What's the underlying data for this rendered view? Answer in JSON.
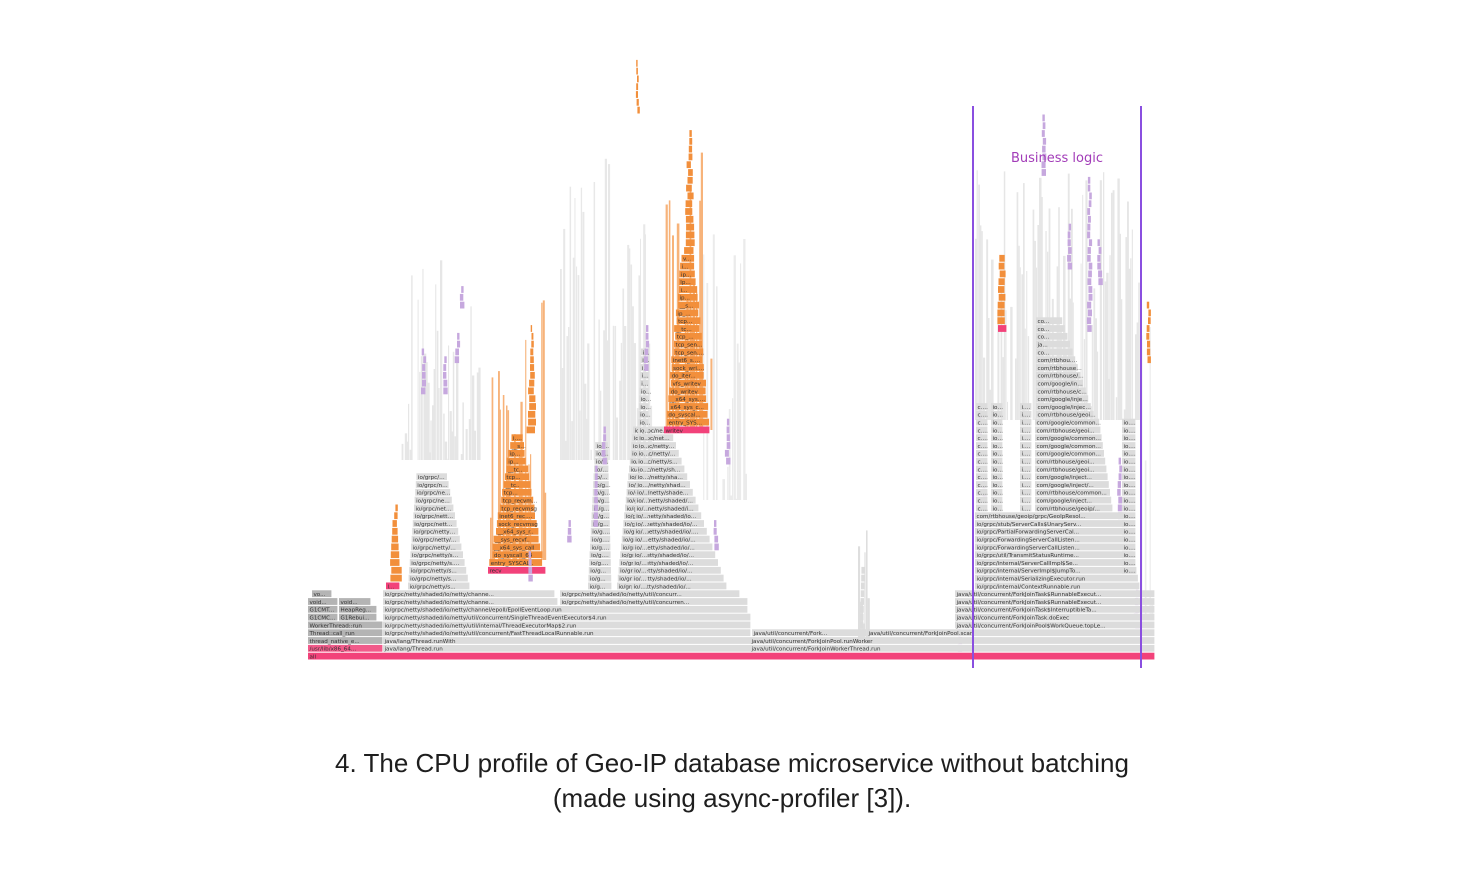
{
  "figure": {
    "annotation": "Business logic",
    "caption_line1": "4. The CPU profile of Geo-IP database microservice without batching",
    "caption_line2": "(made using async-profiler [3])."
  },
  "colors": {
    "root": "#f2427a",
    "orange": "#f28f3b",
    "gray": "#dcdcdc",
    "dark_gray": "#b4b4b4",
    "purple": "#c6a8de",
    "highlight_line": "#8a4fe0",
    "annotation": "#a23cb8"
  },
  "frames": {
    "root": "all",
    "bottom_left": [
      "thread_native_e...",
      "/usr/lib/x86_64...",
      "Thread::call_run",
      "WorkerThread::run",
      "G1CMC...",
      "G1CMT...",
      "G1Rebui...",
      "HeapReg...",
      "void...",
      "vo..."
    ],
    "grpc_stack": [
      "java/lang/Thread.run",
      "java/lang/Thread.runWith",
      "io/grpc/netty/shaded/io/netty/util/concurrent/FastThreadLocalRunnable.run",
      "io/grpc/netty/shaded/io/netty/util/internal/ThreadExecutorMap$2.run",
      "io/grpc/netty/shaded/io/netty/util/concurrent/SingleThreadEventExecutor$4.run",
      "io/grpc/netty/shaded/io/netty/channel/epoll/EpollEventLoop.run",
      "io/grpc/netty/shaded/io/netty/channe...",
      "io/grpc/netty/shaded/io/netty/channe...",
      "io/grpc/netty/shaded/io/netty/util/concurren...",
      "io/grpc/netty/shaded/io/netty/util/concurr..."
    ],
    "orange_stack_1": [
      "recv",
      "entry_SYSCAL..",
      "do_syscall_64",
      "__x64_sys_call",
      "__sys_recvf..",
      "__x64_sys_r..",
      "sock_recvmsg",
      "inet6_rec...",
      "tcp_recvmsg",
      "tcp_recvm..",
      "tcp...",
      "__tc..",
      "tcp...",
      "__tc..",
      "ip...",
      "ip...",
      "__s...",
      "i..."
    ],
    "orange_stack_2": [
      "writev",
      "entry_SYS...",
      "do_syscal...",
      "x64_sys_c...",
      "__x64_sys...",
      "do_writev",
      "vfs_writev",
      "do_iter...",
      "sock_wri...",
      "inet6_s...",
      "tcp_sen...",
      "tcp_sen...",
      "tcp_...",
      "__tc...",
      "tcp...",
      "ip_...",
      "__s...",
      "ip...",
      "i...",
      "lp...",
      "ip...",
      "i...",
      "v..."
    ],
    "forkjoin_stack": [
      "java/util/concurrent/ForkJoinWorkerThread.run",
      "java/util/concurrent/ForkJoinPool.runWorker",
      "java/util/concurrent/ForkJoinPool.scan",
      "java/util/concurrent/ForkJoinPool$WorkQueue.topLe...",
      "java/util/concurrent/ForkJoinTask.doExec",
      "java/util/concurrent/ForkJoinTask$InterruptibleTa...",
      "java/util/concurrent/ForkJoinTask$RunnableExecut...",
      "java/util/concurrent/ForkJoinTask$RunnableExecut...",
      "io/grpc/internal/ContextRunnable.run",
      "io/grpc/internal/SerializingExecutor.run",
      "io/grpc/internal/ServerImpl$JumpTo...",
      "io/grpc/internal/ServerCallImpl$Se...",
      "io/grpc/util/TransmitStatusRuntime...",
      "io/grpc/ForwardingServerCallListen...",
      "io/grpc/ForwardingServerCallListen...",
      "io/grpc/PartialForwardingServerCal...",
      "io/grpc/stub/ServerCalls$UnaryServ...",
      "com/rtbhouse/geoip/grpc/GeoIpResol...",
      "com/rtbhouse/geoip/...",
      "com/google/inject...",
      "com/rtbhouse/common...",
      "com/google/inject/...",
      "com/google/inject...",
      "com/rtbhouse/geoi...",
      "com/rtbhouse/geoi...",
      "com/google/common...",
      "com/google/common...",
      "com/google/common...",
      "com/rtbhouse/geoi...",
      "com/google/common...",
      "com/rtbhouse/geoi...",
      "com/google/inject...",
      "com/google/inject...",
      "com/rtbhouse/comm...",
      "com/google/inj...",
      "com/rtbhouse/g...",
      "com/rtbhouse/g...",
      "com/rtbhou...",
      "co...",
      "ja...",
      "co...",
      "co...",
      "co..."
    ],
    "middle_labels": [
      "java/util/concurrent/Fork...",
      "java/util/concurrent/ForkJoinPool.scan"
    ]
  }
}
